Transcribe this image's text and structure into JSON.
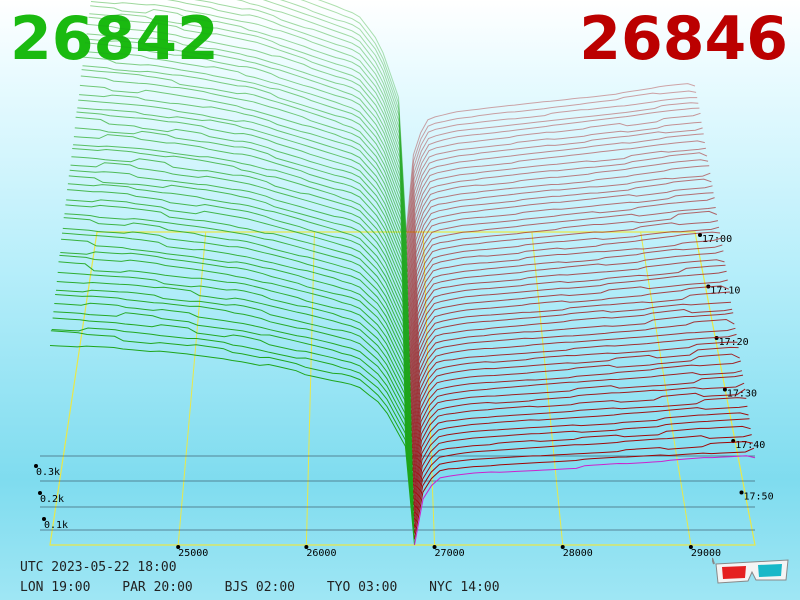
{
  "header": {
    "bid": "26842",
    "ask": "26846"
  },
  "colors": {
    "bid": "#1aba10",
    "ask": "#bb0000",
    "grid": "#e8e84a",
    "bid_line": "#1ea51a",
    "ask_line": "#a00000",
    "latest_ask": "#cc22cc"
  },
  "footer": {
    "utc": "UTC 2023-05-22 18:00",
    "zones": [
      {
        "label": "LON 19:00"
      },
      {
        "label": "PAR 20:00"
      },
      {
        "label": "BJS 02:00"
      },
      {
        "label": "TYO 03:00"
      },
      {
        "label": "NYC 14:00"
      }
    ]
  },
  "icons": {
    "glasses": "3d-glasses-icon"
  },
  "chart_data": {
    "type": "area",
    "description_3d": "order-book depth over time",
    "price_ticks": [
      "25000",
      "26000",
      "27000",
      "28000",
      "29000"
    ],
    "price_values": [
      25000,
      26000,
      27000,
      28000,
      29000
    ],
    "depth_ticks": [
      "0.1k",
      "0.2k",
      "0.3k"
    ],
    "depth_values": [
      100,
      200,
      300
    ],
    "time_ticks": [
      "17:00",
      "17:10",
      "17:20",
      "17:30",
      "17:40",
      "17:50"
    ],
    "xlim": [
      24000,
      29500
    ],
    "ylim": [
      0,
      900
    ],
    "mid_price": 26844,
    "bid_depth_profile": {
      "price": [
        24000,
        24600,
        25100,
        25500,
        26000,
        26400,
        26600,
        26780,
        26844
      ],
      "depth": [
        880,
        860,
        830,
        800,
        740,
        690,
        600,
        420,
        0
      ]
    },
    "ask_depth_profile": {
      "price": [
        26844,
        26920,
        27050,
        27300,
        27800,
        28300,
        28800,
        29200,
        29500
      ],
      "depth": [
        0,
        280,
        360,
        380,
        400,
        420,
        440,
        460,
        470
      ]
    }
  }
}
